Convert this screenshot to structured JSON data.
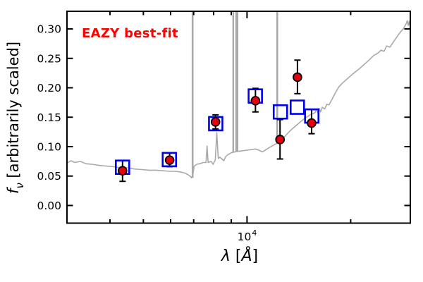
{
  "figure": {
    "xlabel_parts": {
      "variable": "λ",
      "open": " [",
      "unit": "Å",
      "close": "]"
    },
    "ylabel_parts": {
      "symbol": "f",
      "subscript": "ν",
      "rest": " [arbitrarily scaled]"
    },
    "x_major_tick_label": {
      "mantissa": "10",
      "exponent": "4"
    }
  },
  "chart_data": {
    "type": "scatter",
    "annotation": "EAZY best-fit",
    "xlabel": "λ [Å]",
    "ylabel": "f_ν [arbitrarily scaled]",
    "xscale": "log",
    "xlim": [
      3000,
      29800
    ],
    "ylim": [
      -0.03,
      0.33
    ],
    "grid": false,
    "x_major_ticks": [
      {
        "value": 10000,
        "label": "10^4"
      }
    ],
    "x_minor_ticks": [
      4000,
      5000,
      6000,
      7000,
      8000,
      9000,
      20000
    ],
    "y_ticks": [
      {
        "value": 0.0,
        "label": "0.00"
      },
      {
        "value": 0.05,
        "label": "0.05"
      },
      {
        "value": 0.1,
        "label": "0.10"
      },
      {
        "value": 0.15,
        "label": "0.15"
      },
      {
        "value": 0.2,
        "label": "0.20"
      },
      {
        "value": 0.25,
        "label": "0.25"
      },
      {
        "value": 0.3,
        "label": "0.30"
      }
    ],
    "colors": {
      "spectrum": "#a9a9a9",
      "observed_fill": "#e8000d",
      "observed_edge": "#000000",
      "model": "#0000ee",
      "annotation": "#ff0000",
      "axis": "#000000"
    },
    "spectrum": [
      [
        3000,
        0.072
      ],
      [
        3080,
        0.076
      ],
      [
        3160,
        0.073
      ],
      [
        3280,
        0.075
      ],
      [
        3400,
        0.071
      ],
      [
        3550,
        0.07
      ],
      [
        3730,
        0.068
      ],
      [
        3900,
        0.067
      ],
      [
        4100,
        0.066
      ],
      [
        4300,
        0.064
      ],
      [
        4500,
        0.064
      ],
      [
        4700,
        0.062
      ],
      [
        4950,
        0.061
      ],
      [
        5200,
        0.06
      ],
      [
        5430,
        0.06
      ],
      [
        5700,
        0.059
      ],
      [
        5960,
        0.058
      ],
      [
        6200,
        0.058
      ],
      [
        6400,
        0.057
      ],
      [
        6610,
        0.055
      ],
      [
        6800,
        0.051
      ],
      [
        6900,
        0.047
      ],
      [
        6960,
        0.053
      ],
      [
        7030,
        0.067
      ],
      [
        7150,
        0.07
      ],
      [
        7300,
        0.071
      ],
      [
        7450,
        0.073
      ],
      [
        7600,
        0.073
      ],
      [
        7655,
        0.101
      ],
      [
        7710,
        0.073
      ],
      [
        7860,
        0.075
      ],
      [
        7980,
        0.07
      ],
      [
        8090,
        0.078
      ],
      [
        8170,
        0.124
      ],
      [
        8250,
        0.08
      ],
      [
        8340,
        0.082
      ],
      [
        8460,
        0.079
      ],
      [
        8560,
        0.076
      ],
      [
        8670,
        0.083
      ],
      [
        8780,
        0.086
      ],
      [
        8900,
        0.088
      ],
      [
        9050,
        0.09
      ],
      [
        9230,
        0.091
      ],
      [
        9450,
        0.092
      ],
      [
        9700,
        0.093
      ],
      [
        10000,
        0.094
      ],
      [
        10300,
        0.095
      ],
      [
        10580,
        0.096
      ],
      [
        10820,
        0.094
      ],
      [
        11090,
        0.091
      ],
      [
        11350,
        0.095
      ],
      [
        11650,
        0.099
      ],
      [
        12070,
        0.104
      ],
      [
        12300,
        0.106
      ],
      [
        12470,
        0.108
      ],
      [
        12830,
        0.116
      ],
      [
        13100,
        0.122
      ],
      [
        13400,
        0.128
      ],
      [
        13770,
        0.134
      ],
      [
        14220,
        0.141
      ],
      [
        14700,
        0.148
      ],
      [
        15260,
        0.154
      ],
      [
        15770,
        0.158
      ],
      [
        15900,
        0.164
      ],
      [
        16050,
        0.157
      ],
      [
        16200,
        0.165
      ],
      [
        16350,
        0.159
      ],
      [
        16550,
        0.167
      ],
      [
        16800,
        0.164
      ],
      [
        17050,
        0.172
      ],
      [
        17300,
        0.171
      ],
      [
        17600,
        0.179
      ],
      [
        18000,
        0.19
      ],
      [
        18450,
        0.201
      ],
      [
        18850,
        0.207
      ],
      [
        19350,
        0.213
      ],
      [
        20250,
        0.223
      ],
      [
        21250,
        0.233
      ],
      [
        22300,
        0.244
      ],
      [
        23350,
        0.255
      ],
      [
        24000,
        0.259
      ],
      [
        24500,
        0.264
      ],
      [
        25000,
        0.262
      ],
      [
        25450,
        0.271
      ],
      [
        26000,
        0.269
      ],
      [
        26900,
        0.282
      ],
      [
        27750,
        0.293
      ],
      [
        28500,
        0.301
      ],
      [
        29000,
        0.309
      ],
      [
        29200,
        0.314
      ],
      [
        29400,
        0.306
      ],
      [
        29600,
        0.313
      ],
      [
        29800,
        0.303
      ]
    ],
    "emission_lines": [
      {
        "lambda": 6950,
        "f_top": 0.33,
        "f_bottom": 0.047,
        "width": 2.6
      },
      {
        "lambda": 9120,
        "f_top": 0.33,
        "f_bottom": 0.09,
        "width": 2.4
      },
      {
        "lambda": 9340,
        "f_top": 0.33,
        "f_bottom": 0.091,
        "width": 4.2
      },
      {
        "lambda": 12240,
        "f_top": 0.33,
        "f_bottom": 0.105,
        "width": 2.6
      }
    ],
    "model_photometry": [
      {
        "lambda": 4350,
        "flux": 0.065
      },
      {
        "lambda": 5950,
        "flux": 0.078
      },
      {
        "lambda": 8110,
        "flux": 0.139
      },
      {
        "lambda": 10570,
        "flux": 0.186
      },
      {
        "lambda": 12500,
        "flux": 0.159
      },
      {
        "lambda": 14000,
        "flux": 0.167
      },
      {
        "lambda": 15420,
        "flux": 0.152
      }
    ],
    "observed_photometry": [
      {
        "lambda": 4350,
        "flux": 0.059,
        "err_plus": 0.017,
        "err_minus": 0.018
      },
      {
        "lambda": 5960,
        "flux": 0.077,
        "err_plus": 0.012,
        "err_minus": 0.011
      },
      {
        "lambda": 8100,
        "flux": 0.142,
        "err_plus": 0.012,
        "err_minus": 0.012
      },
      {
        "lambda": 10580,
        "flux": 0.178,
        "err_plus": 0.021,
        "err_minus": 0.019
      },
      {
        "lambda": 12470,
        "flux": 0.112,
        "err_plus": 0.034,
        "err_minus": 0.033
      },
      {
        "lambda": 14010,
        "flux": 0.218,
        "err_plus": 0.029,
        "err_minus": 0.028
      },
      {
        "lambda": 15400,
        "flux": 0.14,
        "err_plus": 0.023,
        "err_minus": 0.018
      }
    ]
  }
}
